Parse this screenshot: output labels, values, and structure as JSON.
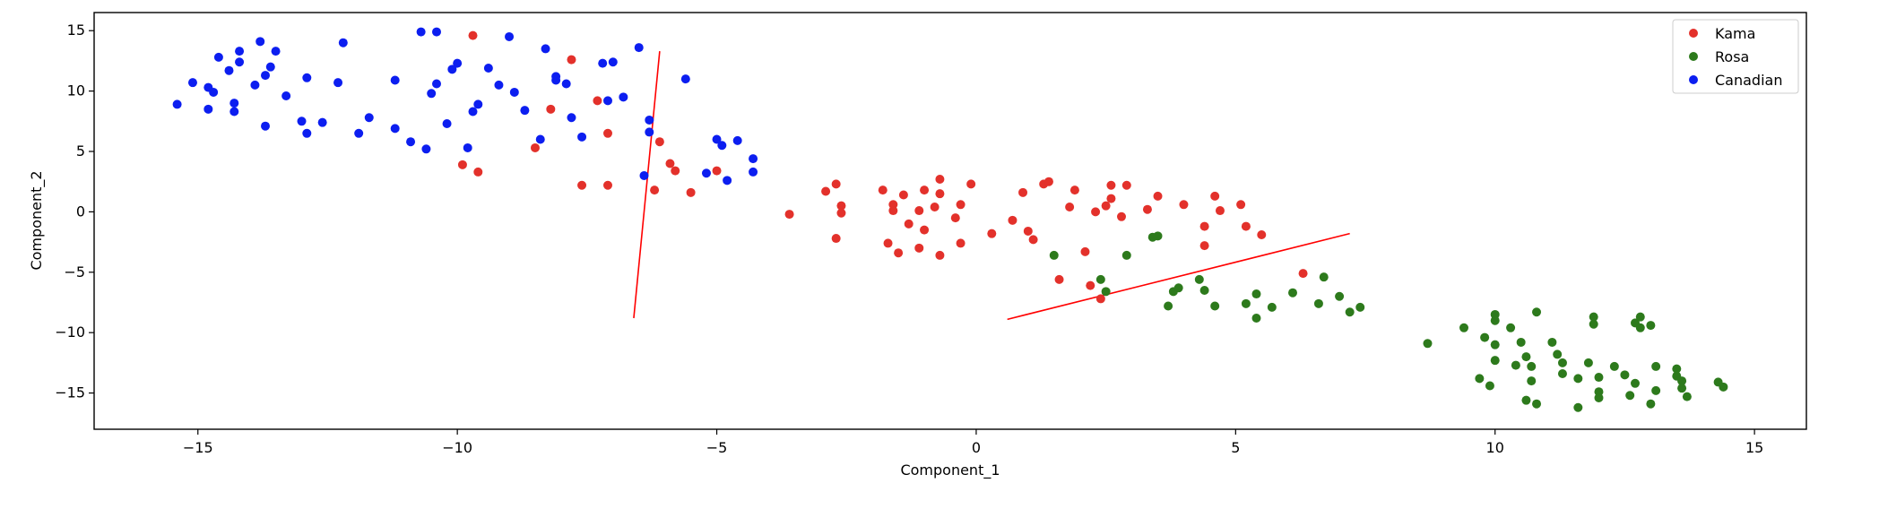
{
  "chart_data": {
    "type": "scatter",
    "title": "",
    "xlabel": "Component_1",
    "ylabel": "Component_2",
    "xlim": [
      -17.0,
      16.0
    ],
    "ylim": [
      -18.0,
      16.5
    ],
    "xticks": [
      -15,
      -10,
      -5,
      0,
      5,
      10,
      15
    ],
    "yticks": [
      -15,
      -10,
      -5,
      0,
      5,
      10,
      15
    ],
    "xtick_labels": [
      "−15",
      "−10",
      "−5",
      "0",
      "5",
      "10",
      "15"
    ],
    "ytick_labels": [
      "−15",
      "−10",
      "−5",
      "0",
      "5",
      "10",
      "15"
    ],
    "grid": false,
    "legend_position": "top-right",
    "series": [
      {
        "name": "Kama",
        "color": "#e3312b",
        "points": [
          [
            -9.7,
            14.6
          ],
          [
            -7.8,
            12.6
          ],
          [
            -8.2,
            8.5
          ],
          [
            -7.3,
            9.2
          ],
          [
            -7.1,
            6.5
          ],
          [
            -8.5,
            5.3
          ],
          [
            -9.9,
            3.9
          ],
          [
            -9.6,
            3.3
          ],
          [
            -7.6,
            2.2
          ],
          [
            -7.1,
            2.2
          ],
          [
            -6.1,
            5.8
          ],
          [
            -5.9,
            4.0
          ],
          [
            -5.8,
            3.4
          ],
          [
            -5.5,
            1.6
          ],
          [
            -6.2,
            1.8
          ],
          [
            -5.0,
            3.4
          ],
          [
            -3.6,
            -0.2
          ],
          [
            -2.9,
            1.7
          ],
          [
            -2.7,
            2.3
          ],
          [
            -2.6,
            0.5
          ],
          [
            -2.6,
            -0.1
          ],
          [
            -2.7,
            -2.2
          ],
          [
            -1.8,
            1.8
          ],
          [
            -1.6,
            0.6
          ],
          [
            -1.6,
            0.1
          ],
          [
            -1.4,
            1.4
          ],
          [
            -1.3,
            -1.0
          ],
          [
            -1.1,
            0.1
          ],
          [
            -1.0,
            1.8
          ],
          [
            -1.0,
            -1.5
          ],
          [
            -0.8,
            0.4
          ],
          [
            -0.7,
            1.5
          ],
          [
            -0.7,
            2.7
          ],
          [
            -0.4,
            -0.5
          ],
          [
            -0.3,
            0.6
          ],
          [
            -0.1,
            2.3
          ],
          [
            -1.7,
            -2.6
          ],
          [
            -1.5,
            -3.4
          ],
          [
            -1.1,
            -3.0
          ],
          [
            -0.7,
            -3.6
          ],
          [
            -0.3,
            -2.6
          ],
          [
            0.3,
            -1.8
          ],
          [
            0.7,
            -0.7
          ],
          [
            0.9,
            1.6
          ],
          [
            1.0,
            -1.6
          ],
          [
            1.1,
            -2.3
          ],
          [
            1.3,
            2.3
          ],
          [
            1.4,
            2.5
          ],
          [
            1.8,
            0.4
          ],
          [
            1.9,
            1.8
          ],
          [
            2.1,
            -3.3
          ],
          [
            2.3,
            0.0
          ],
          [
            2.5,
            0.5
          ],
          [
            2.6,
            1.1
          ],
          [
            2.6,
            2.2
          ],
          [
            2.8,
            -0.4
          ],
          [
            2.9,
            2.2
          ],
          [
            3.3,
            0.2
          ],
          [
            3.5,
            1.3
          ],
          [
            4.0,
            0.6
          ],
          [
            4.4,
            -1.2
          ],
          [
            4.4,
            -2.8
          ],
          [
            4.6,
            1.3
          ],
          [
            4.7,
            0.1
          ],
          [
            5.1,
            0.6
          ],
          [
            5.2,
            -1.2
          ],
          [
            5.5,
            -1.9
          ],
          [
            6.3,
            -5.1
          ],
          [
            1.6,
            -5.6
          ],
          [
            2.2,
            -6.1
          ],
          [
            2.4,
            -7.2
          ]
        ]
      },
      {
        "name": "Rosa",
        "color": "#2d7a1c",
        "points": [
          [
            1.5,
            -3.6
          ],
          [
            2.4,
            -5.6
          ],
          [
            2.5,
            -6.6
          ],
          [
            2.9,
            -3.6
          ],
          [
            3.4,
            -2.1
          ],
          [
            3.5,
            -2.0
          ],
          [
            3.7,
            -7.8
          ],
          [
            3.8,
            -6.6
          ],
          [
            3.9,
            -6.3
          ],
          [
            4.3,
            -5.6
          ],
          [
            4.4,
            -6.5
          ],
          [
            4.6,
            -7.8
          ],
          [
            5.2,
            -7.6
          ],
          [
            5.4,
            -6.8
          ],
          [
            5.4,
            -8.8
          ],
          [
            5.7,
            -7.9
          ],
          [
            6.1,
            -6.7
          ],
          [
            6.6,
            -7.6
          ],
          [
            6.7,
            -5.4
          ],
          [
            7.0,
            -7.0
          ],
          [
            7.2,
            -8.3
          ],
          [
            7.4,
            -7.9
          ],
          [
            8.7,
            -10.9
          ],
          [
            9.4,
            -9.6
          ],
          [
            9.7,
            -13.8
          ],
          [
            9.8,
            -10.4
          ],
          [
            9.9,
            -14.4
          ],
          [
            10.0,
            -8.5
          ],
          [
            10.0,
            -9.0
          ],
          [
            10.0,
            -11.0
          ],
          [
            10.0,
            -12.3
          ],
          [
            10.3,
            -9.6
          ],
          [
            10.4,
            -12.7
          ],
          [
            10.5,
            -10.8
          ],
          [
            10.6,
            -12.0
          ],
          [
            10.6,
            -15.6
          ],
          [
            10.7,
            -12.8
          ],
          [
            10.7,
            -14.0
          ],
          [
            10.8,
            -15.9
          ],
          [
            10.8,
            -8.3
          ],
          [
            11.1,
            -10.8
          ],
          [
            11.2,
            -11.8
          ],
          [
            11.3,
            -12.5
          ],
          [
            11.3,
            -13.4
          ],
          [
            11.6,
            -16.2
          ],
          [
            11.6,
            -13.8
          ],
          [
            11.8,
            -12.5
          ],
          [
            11.9,
            -8.7
          ],
          [
            11.9,
            -9.3
          ],
          [
            12.0,
            -14.9
          ],
          [
            12.0,
            -15.4
          ],
          [
            12.0,
            -13.7
          ],
          [
            12.3,
            -12.8
          ],
          [
            12.5,
            -13.5
          ],
          [
            12.6,
            -15.2
          ],
          [
            12.7,
            -14.2
          ],
          [
            12.7,
            -9.2
          ],
          [
            12.8,
            -8.7
          ],
          [
            12.8,
            -9.6
          ],
          [
            13.0,
            -15.9
          ],
          [
            13.0,
            -9.4
          ],
          [
            13.1,
            -12.8
          ],
          [
            13.1,
            -14.8
          ],
          [
            13.5,
            -13.6
          ],
          [
            13.5,
            -13.0
          ],
          [
            13.6,
            -14.0
          ],
          [
            13.6,
            -14.6
          ],
          [
            13.7,
            -15.3
          ],
          [
            14.3,
            -14.1
          ],
          [
            14.4,
            -14.5
          ]
        ]
      },
      {
        "name": "Canadian",
        "color": "#0c1ef0",
        "points": [
          [
            -15.4,
            8.9
          ],
          [
            -15.1,
            10.7
          ],
          [
            -14.8,
            10.3
          ],
          [
            -14.8,
            8.5
          ],
          [
            -14.7,
            9.9
          ],
          [
            -14.6,
            12.8
          ],
          [
            -14.4,
            11.7
          ],
          [
            -14.3,
            9.0
          ],
          [
            -14.3,
            8.3
          ],
          [
            -14.2,
            13.3
          ],
          [
            -14.2,
            12.4
          ],
          [
            -13.9,
            10.5
          ],
          [
            -13.8,
            14.1
          ],
          [
            -13.7,
            11.3
          ],
          [
            -13.7,
            7.1
          ],
          [
            -13.6,
            12.0
          ],
          [
            -13.5,
            13.3
          ],
          [
            -13.3,
            9.6
          ],
          [
            -13.0,
            7.5
          ],
          [
            -12.9,
            11.1
          ],
          [
            -12.9,
            6.5
          ],
          [
            -12.6,
            7.4
          ],
          [
            -12.3,
            10.7
          ],
          [
            -12.2,
            14.0
          ],
          [
            -11.9,
            6.5
          ],
          [
            -11.7,
            7.8
          ],
          [
            -11.2,
            6.9
          ],
          [
            -11.2,
            10.9
          ],
          [
            -10.9,
            5.8
          ],
          [
            -10.7,
            14.9
          ],
          [
            -10.6,
            5.2
          ],
          [
            -10.5,
            9.8
          ],
          [
            -10.4,
            14.9
          ],
          [
            -10.4,
            10.6
          ],
          [
            -10.2,
            7.3
          ],
          [
            -10.1,
            11.8
          ],
          [
            -10.0,
            12.3
          ],
          [
            -9.8,
            5.3
          ],
          [
            -9.7,
            8.3
          ],
          [
            -9.6,
            8.9
          ],
          [
            -9.4,
            11.9
          ],
          [
            -9.2,
            10.5
          ],
          [
            -9.0,
            14.5
          ],
          [
            -8.9,
            9.9
          ],
          [
            -8.7,
            8.4
          ],
          [
            -8.4,
            6.0
          ],
          [
            -8.3,
            13.5
          ],
          [
            -8.1,
            10.9
          ],
          [
            -8.1,
            11.2
          ],
          [
            -7.9,
            10.6
          ],
          [
            -7.8,
            7.8
          ],
          [
            -7.6,
            6.2
          ],
          [
            -7.2,
            12.3
          ],
          [
            -7.1,
            9.2
          ],
          [
            -7.0,
            12.4
          ],
          [
            -6.8,
            9.5
          ],
          [
            -6.5,
            13.6
          ],
          [
            -6.4,
            3.0
          ],
          [
            -6.3,
            7.6
          ],
          [
            -6.3,
            6.6
          ],
          [
            -5.6,
            11.0
          ],
          [
            -5.2,
            3.2
          ],
          [
            -5.0,
            6.0
          ],
          [
            -4.9,
            5.5
          ],
          [
            -4.8,
            2.6
          ],
          [
            -4.6,
            5.9
          ],
          [
            -4.3,
            4.4
          ],
          [
            -4.3,
            3.3
          ]
        ]
      }
    ],
    "lines": [
      {
        "color": "#ff0000",
        "x": [
          -6.1,
          -6.6
        ],
        "y": [
          13.3,
          -8.8
        ]
      },
      {
        "color": "#ff0000",
        "x": [
          0.6,
          7.2
        ],
        "y": [
          -8.9,
          -1.8
        ]
      }
    ]
  }
}
